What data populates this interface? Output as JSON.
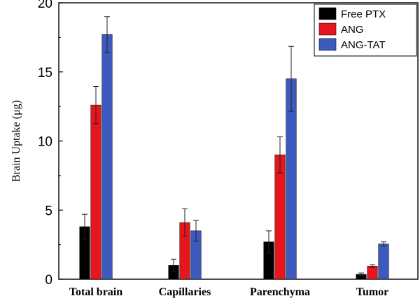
{
  "chart_data": {
    "type": "bar",
    "categories": [
      "Total brain",
      "Capillaries",
      "Parenchyma",
      "Tumor"
    ],
    "series": [
      {
        "name": "Free PTX",
        "color": "#000000",
        "values": [
          3.8,
          1.0,
          2.7,
          0.35
        ],
        "errors": [
          0.9,
          0.45,
          0.8,
          0.1
        ]
      },
      {
        "name": "ANG",
        "color": "#e8141e",
        "values": [
          12.6,
          4.1,
          9.0,
          0.95
        ],
        "errors": [
          1.35,
          1.0,
          1.3,
          0.1
        ]
      },
      {
        "name": "ANG-TAT",
        "color": "#3d5bbf",
        "values": [
          17.7,
          3.5,
          14.5,
          2.55
        ],
        "errors": [
          1.3,
          0.75,
          2.35,
          0.15
        ]
      }
    ],
    "ylabel": "Brain Uptake (μg)",
    "ylim": [
      0,
      20
    ],
    "yticks": [
      0,
      5,
      10,
      15,
      20
    ],
    "legend": "top-right",
    "grid": false
  }
}
